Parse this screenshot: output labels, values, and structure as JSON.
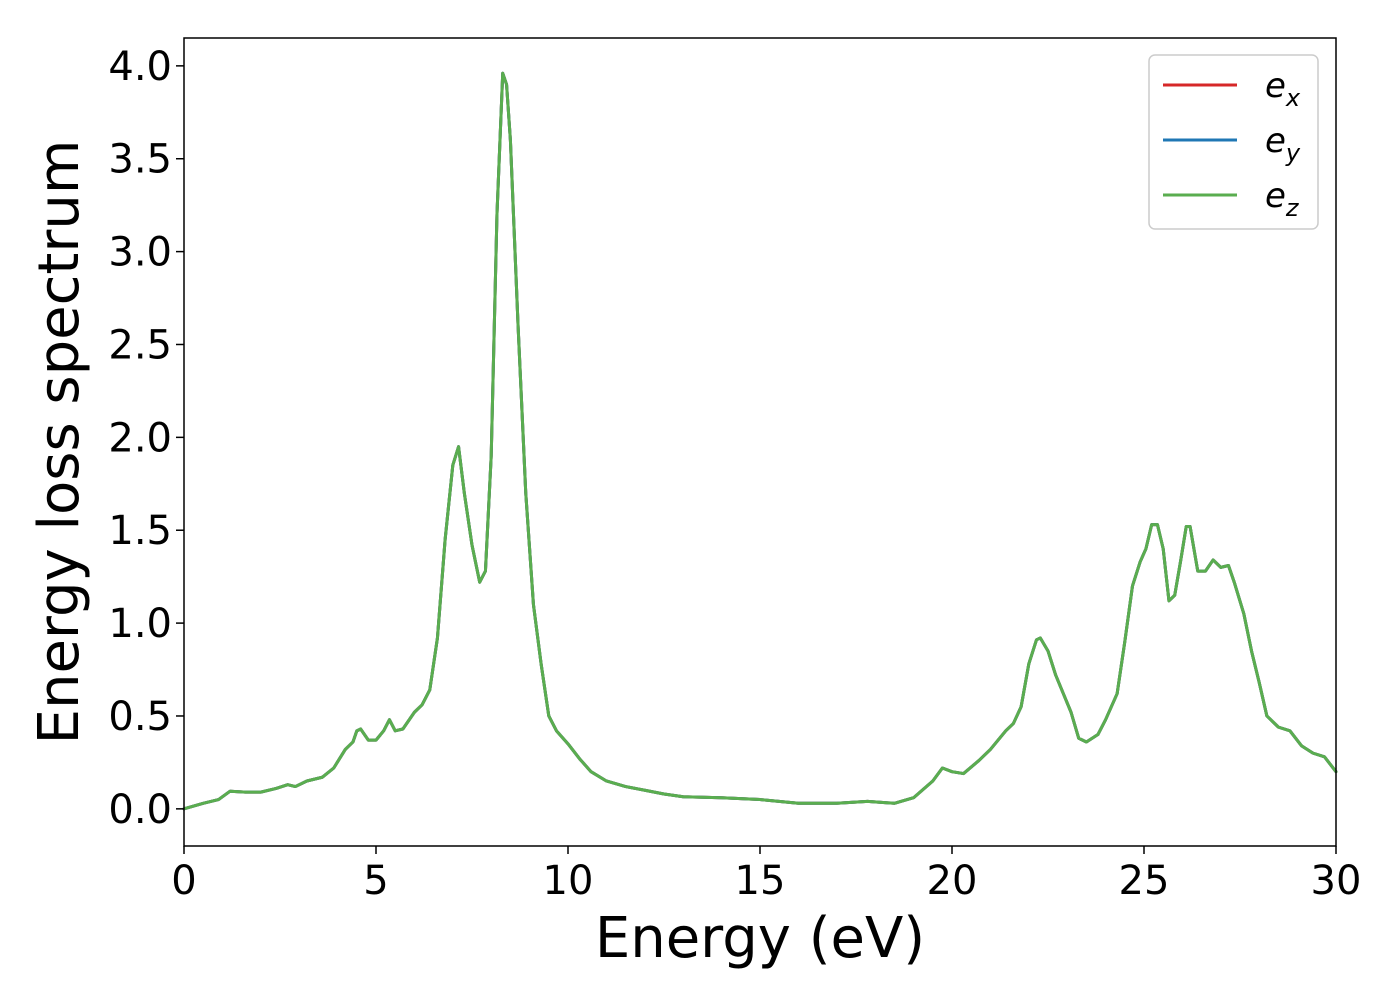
{
  "chart_data": {
    "type": "line",
    "title": "",
    "xlabel": "Energy (eV)",
    "ylabel": "Energy loss spectrum",
    "xlim": [
      0,
      30
    ],
    "ylim": [
      -0.2,
      4.15
    ],
    "xticks": [
      0,
      5,
      10,
      15,
      20,
      25,
      30
    ],
    "yticks": [
      0.0,
      0.5,
      1.0,
      1.5,
      2.0,
      2.5,
      3.0,
      3.5,
      4.0
    ],
    "xtick_labels": [
      "0",
      "5",
      "10",
      "15",
      "20",
      "25",
      "30"
    ],
    "ytick_labels": [
      "0.0",
      "0.5",
      "1.0",
      "1.5",
      "2.0",
      "2.5",
      "3.0",
      "3.5",
      "4.0"
    ],
    "grid": false,
    "legend_position": "top-right",
    "x": [
      0,
      0.5,
      0.9,
      1.2,
      1.6,
      2.0,
      2.4,
      2.7,
      2.9,
      3.2,
      3.6,
      3.9,
      4.2,
      4.4,
      4.5,
      4.6,
      4.8,
      5.0,
      5.2,
      5.35,
      5.5,
      5.7,
      6.0,
      6.2,
      6.4,
      6.6,
      6.8,
      7.0,
      7.15,
      7.3,
      7.5,
      7.7,
      7.85,
      8.0,
      8.15,
      8.3,
      8.4,
      8.5,
      8.7,
      8.9,
      9.1,
      9.3,
      9.5,
      9.7,
      10.0,
      10.3,
      10.6,
      11.0,
      11.5,
      12.0,
      12.5,
      13.0,
      14.0,
      15.0,
      16.0,
      17.0,
      17.8,
      18.5,
      19.0,
      19.5,
      19.75,
      20.0,
      20.3,
      20.7,
      21.0,
      21.4,
      21.6,
      21.8,
      22.0,
      22.2,
      22.3,
      22.5,
      22.7,
      22.9,
      23.1,
      23.3,
      23.5,
      23.8,
      24.0,
      24.3,
      24.5,
      24.7,
      24.9,
      25.05,
      25.2,
      25.35,
      25.5,
      25.65,
      25.8,
      25.95,
      26.1,
      26.2,
      26.4,
      26.6,
      26.8,
      27.0,
      27.2,
      27.35,
      27.6,
      27.8,
      28.0,
      28.2,
      28.5,
      28.8,
      29.1,
      29.4,
      29.7,
      30.0
    ],
    "series": [
      {
        "name": "e_x",
        "label": "e",
        "subscript": "x",
        "color": "#d62728",
        "values": [
          0.0,
          0.03,
          0.05,
          0.095,
          0.09,
          0.09,
          0.11,
          0.13,
          0.12,
          0.15,
          0.17,
          0.22,
          0.32,
          0.36,
          0.42,
          0.43,
          0.37,
          0.37,
          0.42,
          0.48,
          0.42,
          0.43,
          0.52,
          0.56,
          0.64,
          0.92,
          1.45,
          1.85,
          1.95,
          1.7,
          1.42,
          1.22,
          1.28,
          1.9,
          3.2,
          3.96,
          3.9,
          3.6,
          2.6,
          1.7,
          1.1,
          0.78,
          0.5,
          0.42,
          0.35,
          0.27,
          0.2,
          0.15,
          0.12,
          0.1,
          0.08,
          0.065,
          0.06,
          0.05,
          0.03,
          0.03,
          0.04,
          0.03,
          0.06,
          0.15,
          0.22,
          0.2,
          0.19,
          0.26,
          0.32,
          0.42,
          0.46,
          0.55,
          0.78,
          0.91,
          0.92,
          0.85,
          0.72,
          0.62,
          0.52,
          0.38,
          0.36,
          0.4,
          0.48,
          0.62,
          0.9,
          1.2,
          1.33,
          1.4,
          1.53,
          1.53,
          1.4,
          1.12,
          1.15,
          1.33,
          1.52,
          1.52,
          1.28,
          1.28,
          1.34,
          1.3,
          1.31,
          1.22,
          1.05,
          0.85,
          0.68,
          0.5,
          0.44,
          0.42,
          0.34,
          0.3,
          0.28,
          0.2
        ]
      },
      {
        "name": "e_y",
        "label": "e",
        "subscript": "y",
        "color": "#1f77b4",
        "values": [
          0.0,
          0.03,
          0.05,
          0.095,
          0.09,
          0.09,
          0.11,
          0.13,
          0.12,
          0.15,
          0.17,
          0.22,
          0.32,
          0.36,
          0.42,
          0.43,
          0.37,
          0.37,
          0.42,
          0.48,
          0.42,
          0.43,
          0.52,
          0.56,
          0.64,
          0.92,
          1.45,
          1.85,
          1.95,
          1.7,
          1.42,
          1.22,
          1.28,
          1.9,
          3.2,
          3.96,
          3.9,
          3.6,
          2.6,
          1.7,
          1.1,
          0.78,
          0.5,
          0.42,
          0.35,
          0.27,
          0.2,
          0.15,
          0.12,
          0.1,
          0.08,
          0.065,
          0.06,
          0.05,
          0.03,
          0.03,
          0.04,
          0.03,
          0.06,
          0.15,
          0.22,
          0.2,
          0.19,
          0.26,
          0.32,
          0.42,
          0.46,
          0.55,
          0.78,
          0.91,
          0.92,
          0.85,
          0.72,
          0.62,
          0.52,
          0.38,
          0.36,
          0.4,
          0.48,
          0.62,
          0.9,
          1.2,
          1.33,
          1.4,
          1.53,
          1.53,
          1.4,
          1.12,
          1.15,
          1.33,
          1.52,
          1.52,
          1.28,
          1.28,
          1.34,
          1.3,
          1.31,
          1.22,
          1.05,
          0.85,
          0.68,
          0.5,
          0.44,
          0.42,
          0.34,
          0.3,
          0.28,
          0.2
        ]
      },
      {
        "name": "e_z",
        "label": "e",
        "subscript": "z",
        "color": "#5aad4f",
        "values": [
          0.0,
          0.03,
          0.05,
          0.095,
          0.09,
          0.09,
          0.11,
          0.13,
          0.12,
          0.15,
          0.17,
          0.22,
          0.32,
          0.36,
          0.42,
          0.43,
          0.37,
          0.37,
          0.42,
          0.48,
          0.42,
          0.43,
          0.52,
          0.56,
          0.64,
          0.92,
          1.45,
          1.85,
          1.95,
          1.7,
          1.42,
          1.22,
          1.28,
          1.9,
          3.2,
          3.96,
          3.9,
          3.6,
          2.6,
          1.7,
          1.1,
          0.78,
          0.5,
          0.42,
          0.35,
          0.27,
          0.2,
          0.15,
          0.12,
          0.1,
          0.08,
          0.065,
          0.06,
          0.05,
          0.03,
          0.03,
          0.04,
          0.03,
          0.06,
          0.15,
          0.22,
          0.2,
          0.19,
          0.26,
          0.32,
          0.42,
          0.46,
          0.55,
          0.78,
          0.91,
          0.92,
          0.85,
          0.72,
          0.62,
          0.52,
          0.38,
          0.36,
          0.4,
          0.48,
          0.62,
          0.9,
          1.2,
          1.33,
          1.4,
          1.53,
          1.53,
          1.4,
          1.12,
          1.15,
          1.33,
          1.52,
          1.52,
          1.28,
          1.28,
          1.34,
          1.3,
          1.31,
          1.22,
          1.05,
          0.85,
          0.68,
          0.5,
          0.44,
          0.42,
          0.34,
          0.3,
          0.28,
          0.2
        ]
      }
    ]
  }
}
